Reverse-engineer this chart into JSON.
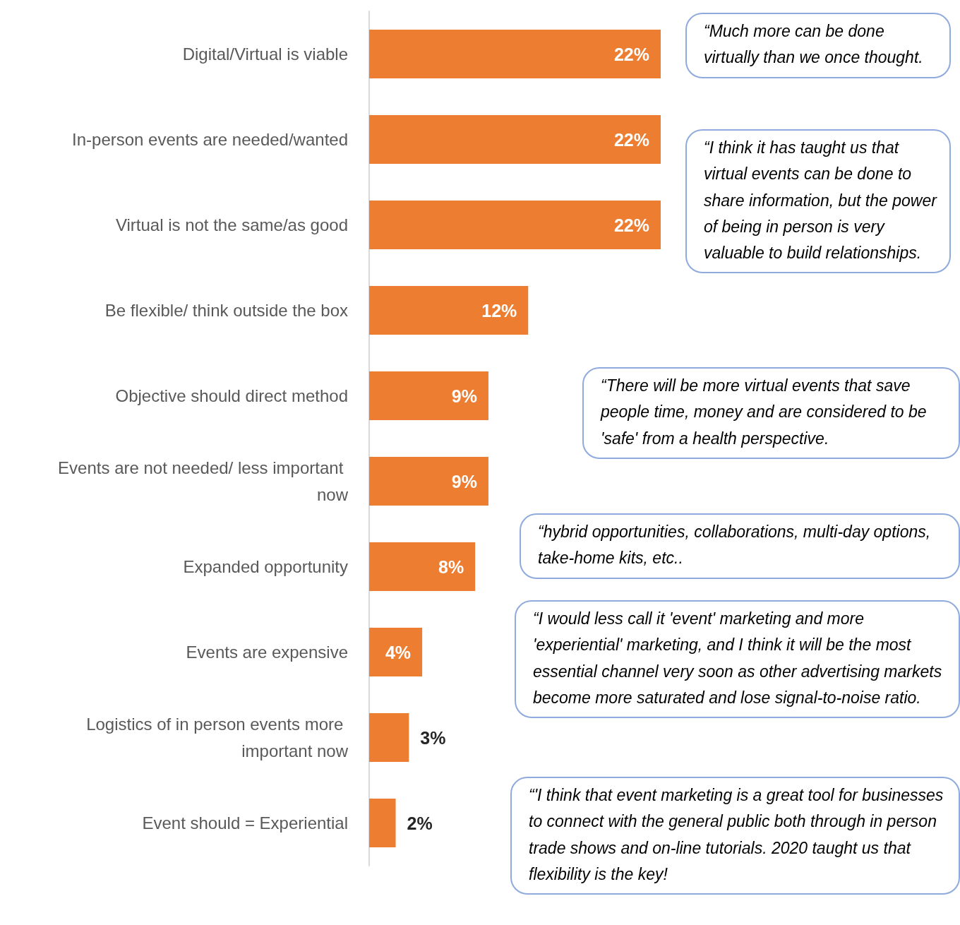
{
  "chart_data": {
    "type": "bar",
    "orientation": "horizontal",
    "categories": [
      "Digital/Virtual is viable",
      "In-person events are needed/wanted",
      "Virtual is not the same/as good",
      "Be flexible/ think outside the box",
      "Objective should direct method",
      "Events are not needed/ less important now",
      "Expanded opportunity",
      "Events are expensive",
      "Logistics of in person events more important now",
      "Event should = Experiential"
    ],
    "values": [
      22,
      22,
      22,
      12,
      9,
      9,
      8,
      4,
      3,
      2
    ],
    "value_labels": [
      "22%",
      "22%",
      "22%",
      "12%",
      "9%",
      "9%",
      "8%",
      "4%",
      "3%",
      "2%"
    ],
    "color": "#ed7d31",
    "annotations": [
      "“Much more can be done virtually than we once thought.",
      "“I think it has taught us that virtual events can be done to share information, but the power of being in person is very valuable to build relationships.",
      "“There will be more virtual events that save people time, money and are considered to be 'safe' from a health perspective.",
      "“hybrid opportunities, collaborations, multi-day options, take-home kits, etc..",
      "“I would less call it 'event' marketing and more 'experiential' marketing, and I think it will be the most essential channel very soon as other advertising markets become more saturated and lose signal-to-noise ratio.",
      "“'I think that event marketing is a great tool for businesses to connect with the general public both through in person trade shows and on-line tutorials.  2020 taught us that flexibility is the key!"
    ]
  }
}
